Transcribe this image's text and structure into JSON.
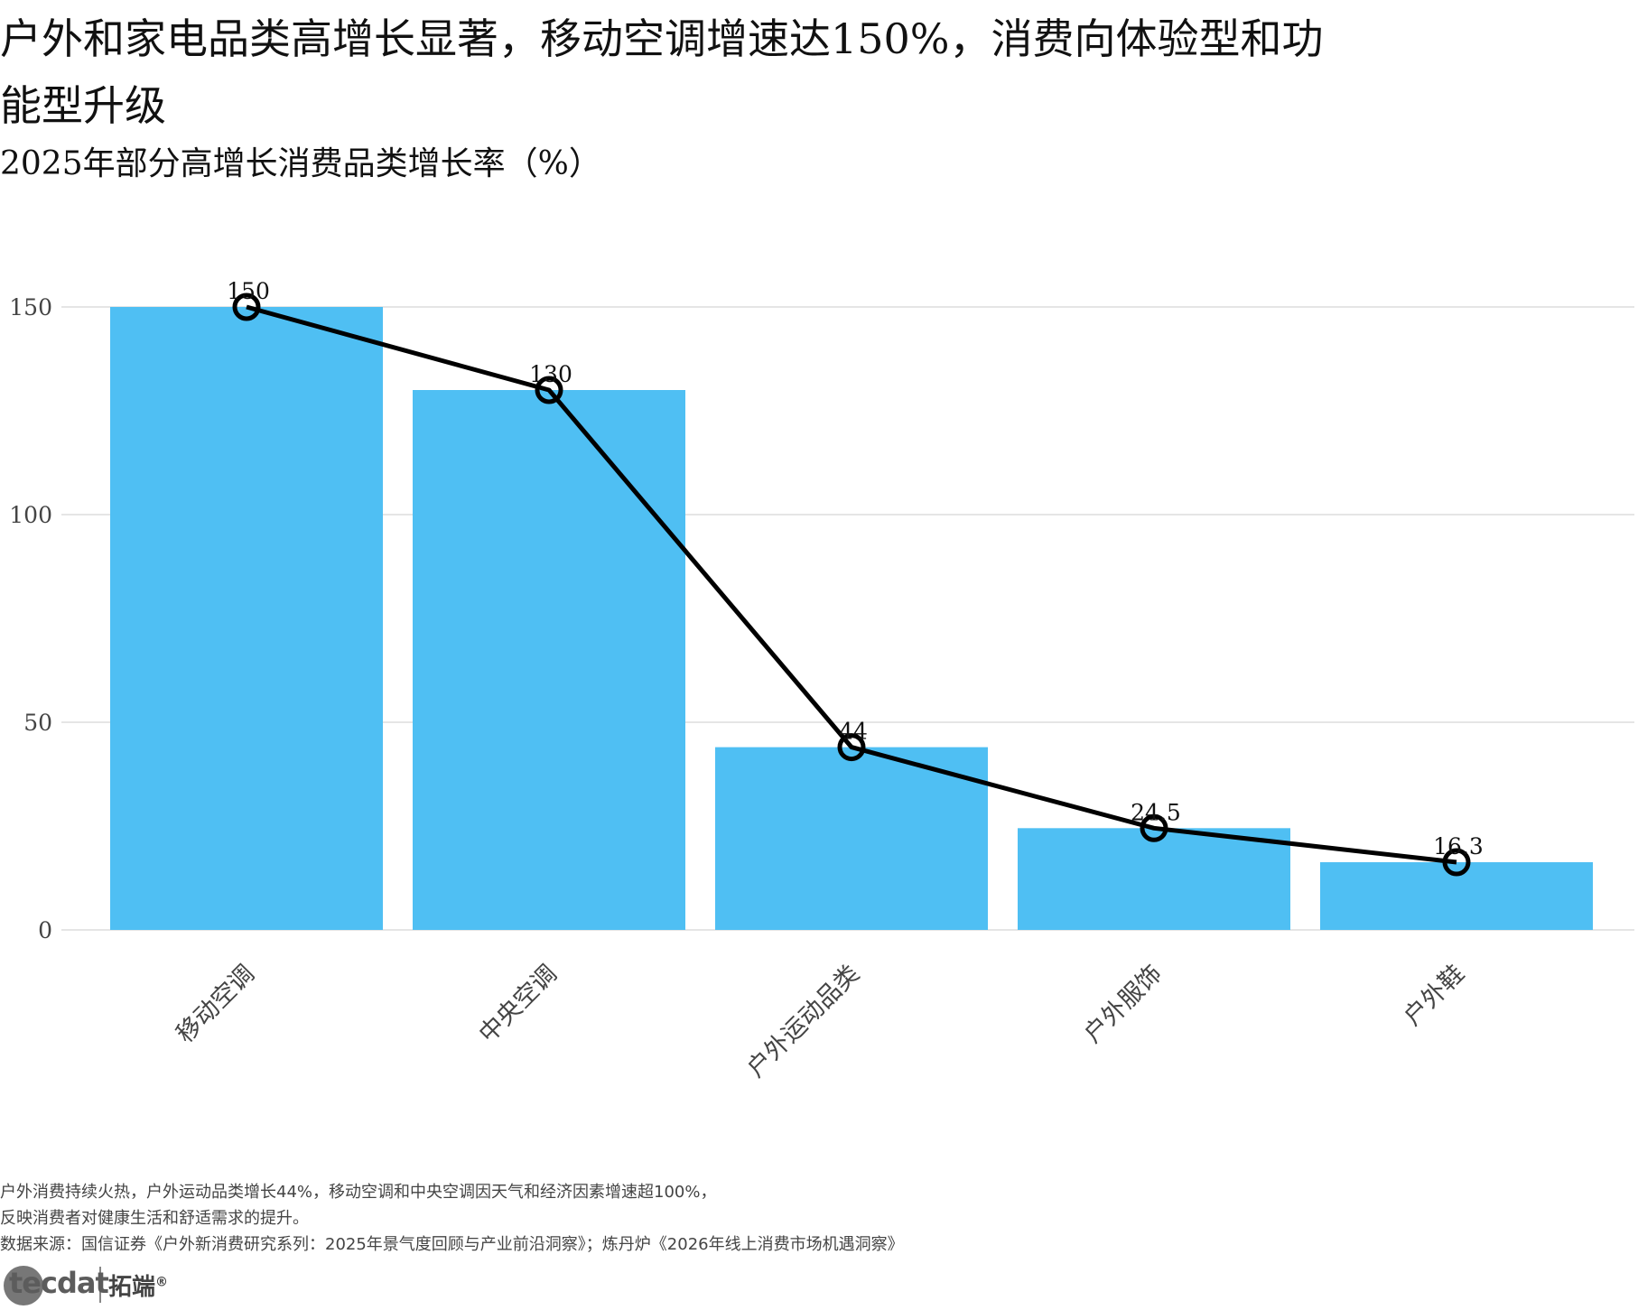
{
  "title": "户外和家电品类高增长显著，移动空调增速达150%，消费向体验型和功能型升级",
  "subtitle": "2025年部分高增长消费品类增长率（%）",
  "colors": {
    "bar": "#4FBFF3",
    "line": "#000000",
    "grid": "#e5e5e5"
  },
  "chart_data": {
    "type": "bar",
    "categories": [
      "移动空调",
      "中央空调",
      "户外运动品类",
      "户外服饰",
      "户外鞋"
    ],
    "values": [
      150,
      130,
      44,
      24.5,
      16.3
    ],
    "data_labels": [
      "150",
      "130",
      "44",
      "24.5",
      "16.3"
    ],
    "overlay_line": {
      "values": [
        150,
        130,
        44,
        24.5,
        16.3
      ],
      "markers": "hollow-circle"
    },
    "title": "2025年部分高增长消费品类增长率（%）",
    "xlabel": "",
    "ylabel": "",
    "ylim": [
      0,
      150
    ],
    "yticks": [
      0,
      50,
      100,
      150
    ],
    "grid": true,
    "legend": "none"
  },
  "caption": {
    "line1": "户外消费持续火热，户外运动品类增长44%，移动空调和中央空调因天气和经济因素增速超100%，",
    "line2": "反映消费者对健康生活和舒适需求的提升。",
    "line3": "数据来源：国信证券《户外新消费研究系列：2025年景气度回顾与产业前沿洞察》；炼丹炉《2026年线上消费市场机遇洞察》"
  },
  "logo": {
    "brand_en": "tecdat",
    "brand_cn": "拓端",
    "mark": "®"
  }
}
